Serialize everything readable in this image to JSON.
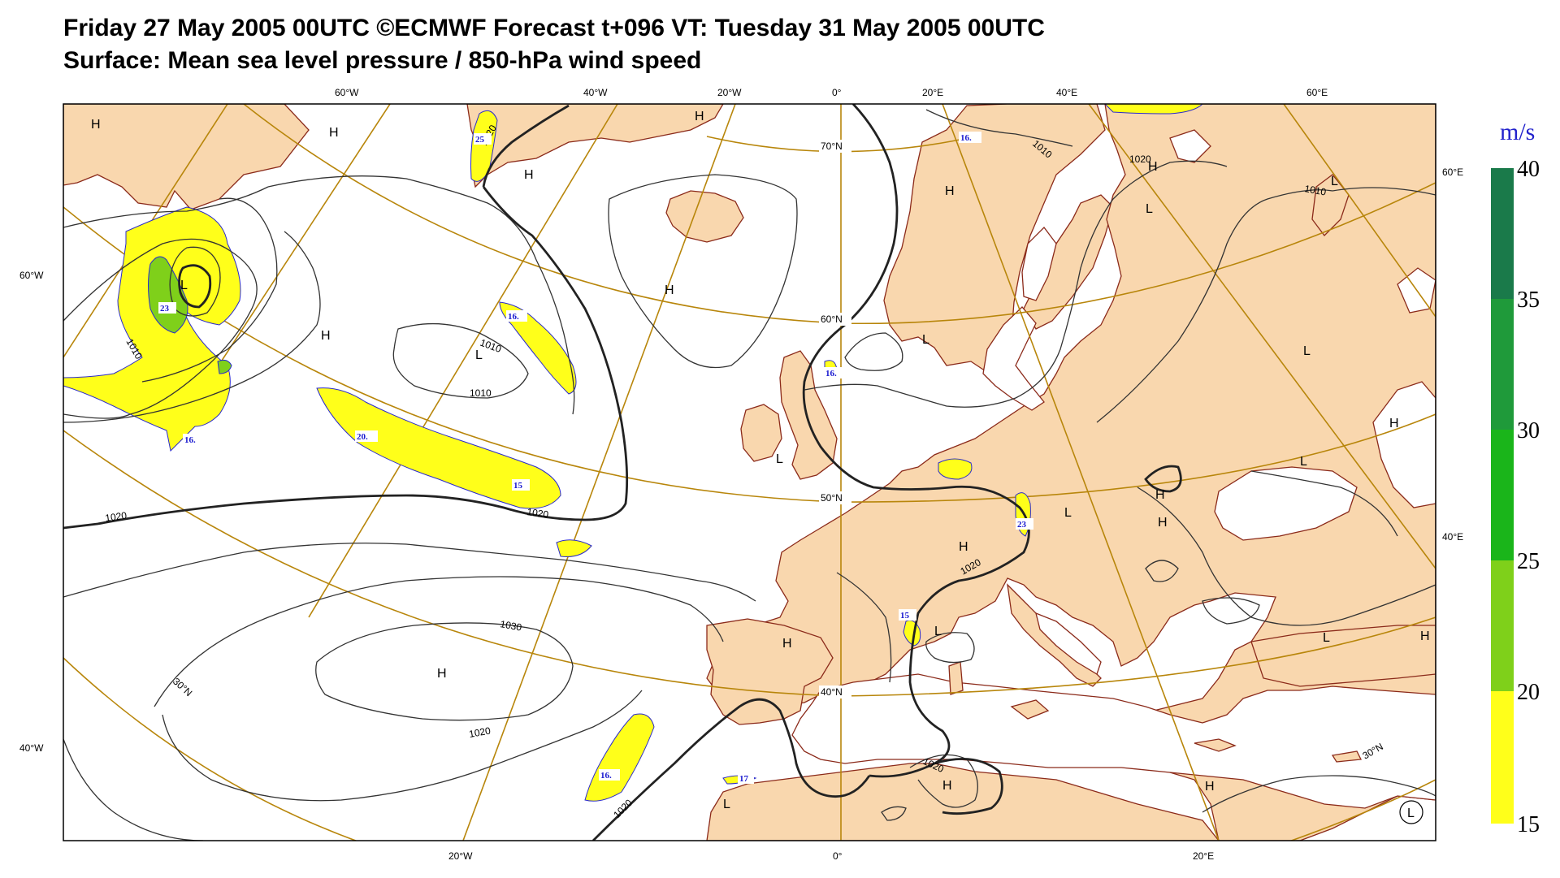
{
  "header": {
    "title_line1": "Friday 27 May 2005 00UTC ©ECMWF Forecast t+096 VT: Tuesday 31 May 2005 00UTC",
    "title_line2": "Surface: Mean sea level pressure / 850-hPa wind speed"
  },
  "map": {
    "projection": "polar stereographic",
    "region": "North Atlantic and Europe",
    "colors": {
      "land": "#f9d7ae",
      "sea": "#ffffff",
      "coastline": "#8b2a1a",
      "graticule": "#b8860b",
      "isobar": "#222222",
      "frame": "#000000"
    },
    "graticule_labels": {
      "top": [
        "60°W",
        "40°W",
        "20°W",
        "0°",
        "20°E",
        "40°E",
        "60°E"
      ],
      "bottom": [
        "20°W",
        "0°",
        "20°E"
      ],
      "left": [
        "60°W",
        "40°W"
      ],
      "right": [
        "60°E",
        "40°E"
      ],
      "inner": [
        "70°N",
        "60°N",
        "50°N",
        "40°N",
        "30°N",
        "30°N"
      ]
    },
    "pressure_centers": [
      {
        "type": "H"
      },
      {
        "type": "H"
      },
      {
        "type": "L"
      },
      {
        "type": "H"
      },
      {
        "type": "L"
      },
      {
        "type": "H"
      },
      {
        "type": "H"
      },
      {
        "type": "H"
      },
      {
        "type": "H"
      },
      {
        "type": "L"
      },
      {
        "type": "L"
      },
      {
        "type": "H"
      },
      {
        "type": "L"
      },
      {
        "type": "L"
      },
      {
        "type": "H"
      },
      {
        "type": "H"
      },
      {
        "type": "L"
      },
      {
        "type": "H"
      },
      {
        "type": "L"
      },
      {
        "type": "H"
      },
      {
        "type": "H"
      },
      {
        "type": "L"
      },
      {
        "type": "H"
      },
      {
        "type": "L"
      },
      {
        "type": "H"
      },
      {
        "type": "L"
      },
      {
        "type": "L"
      },
      {
        "type": "H"
      },
      {
        "type": "L"
      },
      {
        "type": "H"
      }
    ],
    "isobar_labels": [
      "1020",
      "1010",
      "1010",
      "1010",
      "1010",
      "1010",
      "1020",
      "1020",
      "1020",
      "1020",
      "1030",
      "1020",
      "1020",
      "1020"
    ],
    "wind_labels": [
      "25",
      "16.",
      "23",
      "16.",
      "16.",
      "20.",
      "15",
      "16.",
      "23",
      "15",
      "16.",
      "17"
    ]
  },
  "legend": {
    "unit": "m/s",
    "ticks": [
      "40",
      "35",
      "30",
      "25",
      "20",
      "15"
    ],
    "colors": [
      "#1a7a4a",
      "#1f9a3a",
      "#1ab51a",
      "#7fd01a",
      "#ffff1a"
    ]
  }
}
